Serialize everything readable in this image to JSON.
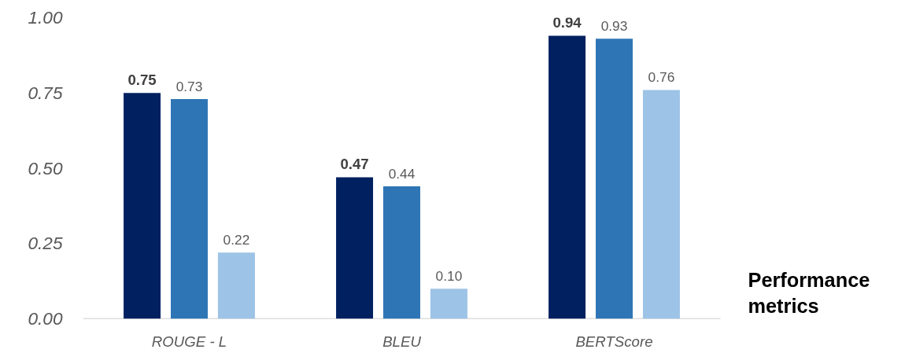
{
  "chart_data": {
    "type": "bar",
    "xlabel": "Performance metrics",
    "categories": [
      "ROUGE - L",
      "BLEU",
      "BERTScore"
    ],
    "series": [
      {
        "color": "#002060",
        "values": [
          0.75,
          0.47,
          0.94
        ],
        "value_labels": [
          "0.75",
          "0.47",
          "0.94"
        ]
      },
      {
        "color": "#2e75b6",
        "values": [
          0.73,
          0.44,
          0.93
        ],
        "value_labels": [
          "0.73",
          "0.44",
          "0.93"
        ]
      },
      {
        "color": "#9dc3e6",
        "values": [
          0.22,
          0.1,
          0.76
        ],
        "value_labels": [
          "0.22",
          "0.10",
          "0.76"
        ]
      }
    ],
    "ylim": [
      0,
      1
    ],
    "yticks": [
      {
        "value": 0,
        "label": "0.00"
      },
      {
        "value": 0.25,
        "label": "0.25"
      },
      {
        "value": 0.5,
        "label": "0.50"
      },
      {
        "value": 0.75,
        "label": "0.75"
      },
      {
        "value": 1,
        "label": "1.00"
      }
    ],
    "data_labels": true,
    "grid": false
  }
}
